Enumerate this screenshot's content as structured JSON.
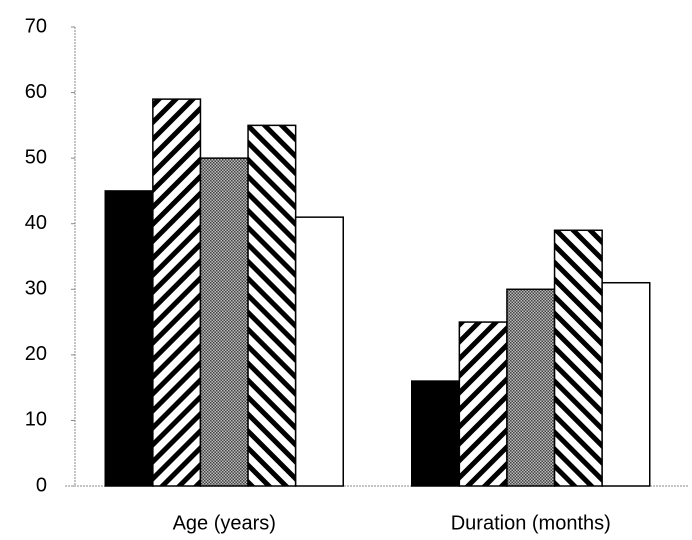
{
  "chart_data": {
    "type": "bar",
    "categories": [
      "Age (years)",
      "Duration (months)"
    ],
    "series": [
      {
        "pattern": "solid",
        "color": "#000000",
        "values": [
          45,
          16
        ]
      },
      {
        "pattern": "diagonal-up",
        "color": "#000000",
        "values": [
          59,
          25
        ]
      },
      {
        "pattern": "dots",
        "color": "#000000",
        "values": [
          50,
          30
        ]
      },
      {
        "pattern": "diagonal-down",
        "color": "#000000",
        "values": [
          55,
          39
        ]
      },
      {
        "pattern": "none",
        "color": "#000000",
        "values": [
          41,
          31
        ]
      }
    ],
    "ylim": [
      0,
      70
    ],
    "yticks": [
      0,
      10,
      20,
      30,
      40,
      50,
      60,
      70
    ],
    "grid": false
  }
}
